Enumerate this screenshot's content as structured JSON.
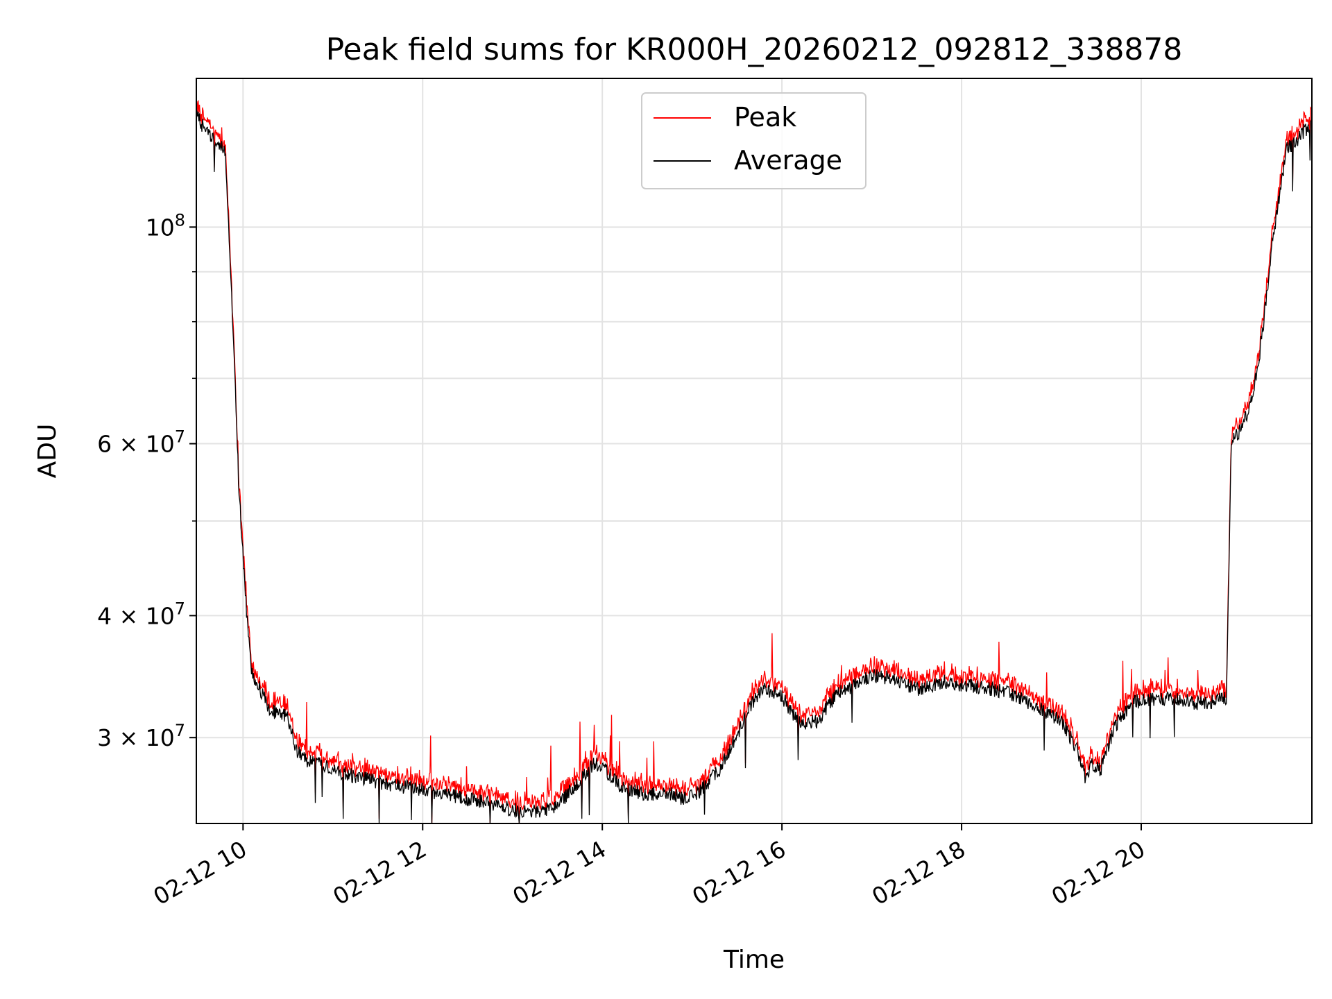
{
  "chart_data": {
    "type": "line",
    "title": "Peak field sums for KR000H_20260212_092812_338878",
    "xlabel": "Time",
    "ylabel": "ADU",
    "yscale": "log",
    "grid": true,
    "legend_position": "upper center",
    "xlim_hours": [
      9.48,
      21.9
    ],
    "ylim": [
      24500000,
      142000000
    ],
    "x_ticks": [
      {
        "hour": 10,
        "label": "02-12 10"
      },
      {
        "hour": 12,
        "label": "02-12 12"
      },
      {
        "hour": 14,
        "label": "02-12 14"
      },
      {
        "hour": 16,
        "label": "02-12 16"
      },
      {
        "hour": 18,
        "label": "02-12 18"
      },
      {
        "hour": 20,
        "label": "02-12 20"
      }
    ],
    "y_ticks": [
      {
        "value": 100000000,
        "label_base": "10",
        "label_exp": "8"
      },
      {
        "value": 60000000,
        "label_base": "6 × 10",
        "label_exp": "7"
      },
      {
        "value": 40000000,
        "label_base": "4 × 10",
        "label_exp": "7"
      },
      {
        "value": 30000000,
        "label_base": "3 × 10",
        "label_exp": "7"
      }
    ],
    "y_minor_ticks": [
      90000000,
      80000000,
      70000000,
      50000000
    ],
    "series": [
      {
        "name": "Peak",
        "color": "#ff0000"
      },
      {
        "name": "Average",
        "color": "#000000"
      }
    ],
    "average_curve": {
      "hours": [
        9.48,
        9.6,
        9.8,
        9.85,
        9.9,
        9.95,
        10.0,
        10.05,
        10.1,
        10.2,
        10.3,
        10.5,
        10.6,
        10.7,
        11.0,
        11.5,
        12.0,
        12.5,
        13.0,
        13.3,
        13.5,
        13.7,
        13.9,
        14.0,
        14.2,
        14.5,
        14.7,
        14.9,
        15.1,
        15.3,
        15.5,
        15.7,
        15.8,
        16.0,
        16.2,
        16.4,
        16.6,
        16.8,
        17.0,
        17.2,
        17.5,
        17.8,
        18.0,
        18.3,
        18.6,
        18.9,
        19.1,
        19.3,
        19.38,
        19.45,
        19.55,
        19.7,
        19.9,
        20.1,
        20.4,
        20.7,
        20.95,
        21.0,
        21.1,
        21.2,
        21.3,
        21.35,
        21.45,
        21.55,
        21.62,
        21.7,
        21.8,
        21.9
      ],
      "values": [
        130000000,
        125000000,
        120000000,
        95000000,
        75000000,
        55000000,
        46000000,
        39000000,
        35000000,
        33500000,
        32000000,
        31500000,
        29000000,
        28500000,
        27800000,
        27000000,
        26500000,
        26000000,
        25300000,
        25200000,
        25600000,
        26800000,
        28200000,
        28000000,
        26800000,
        26200000,
        26400000,
        26000000,
        26500000,
        27800000,
        30200000,
        33000000,
        33800000,
        33000000,
        31000000,
        31200000,
        33200000,
        34000000,
        34700000,
        34500000,
        33600000,
        34200000,
        34000000,
        33700000,
        33200000,
        32000000,
        31300000,
        29000000,
        27200000,
        28200000,
        27800000,
        30800000,
        32600000,
        32900000,
        32800000,
        32500000,
        33000000,
        60000000,
        62000000,
        65000000,
        72000000,
        78000000,
        95000000,
        110000000,
        120000000,
        122000000,
        125000000,
        128000000
      ]
    }
  }
}
